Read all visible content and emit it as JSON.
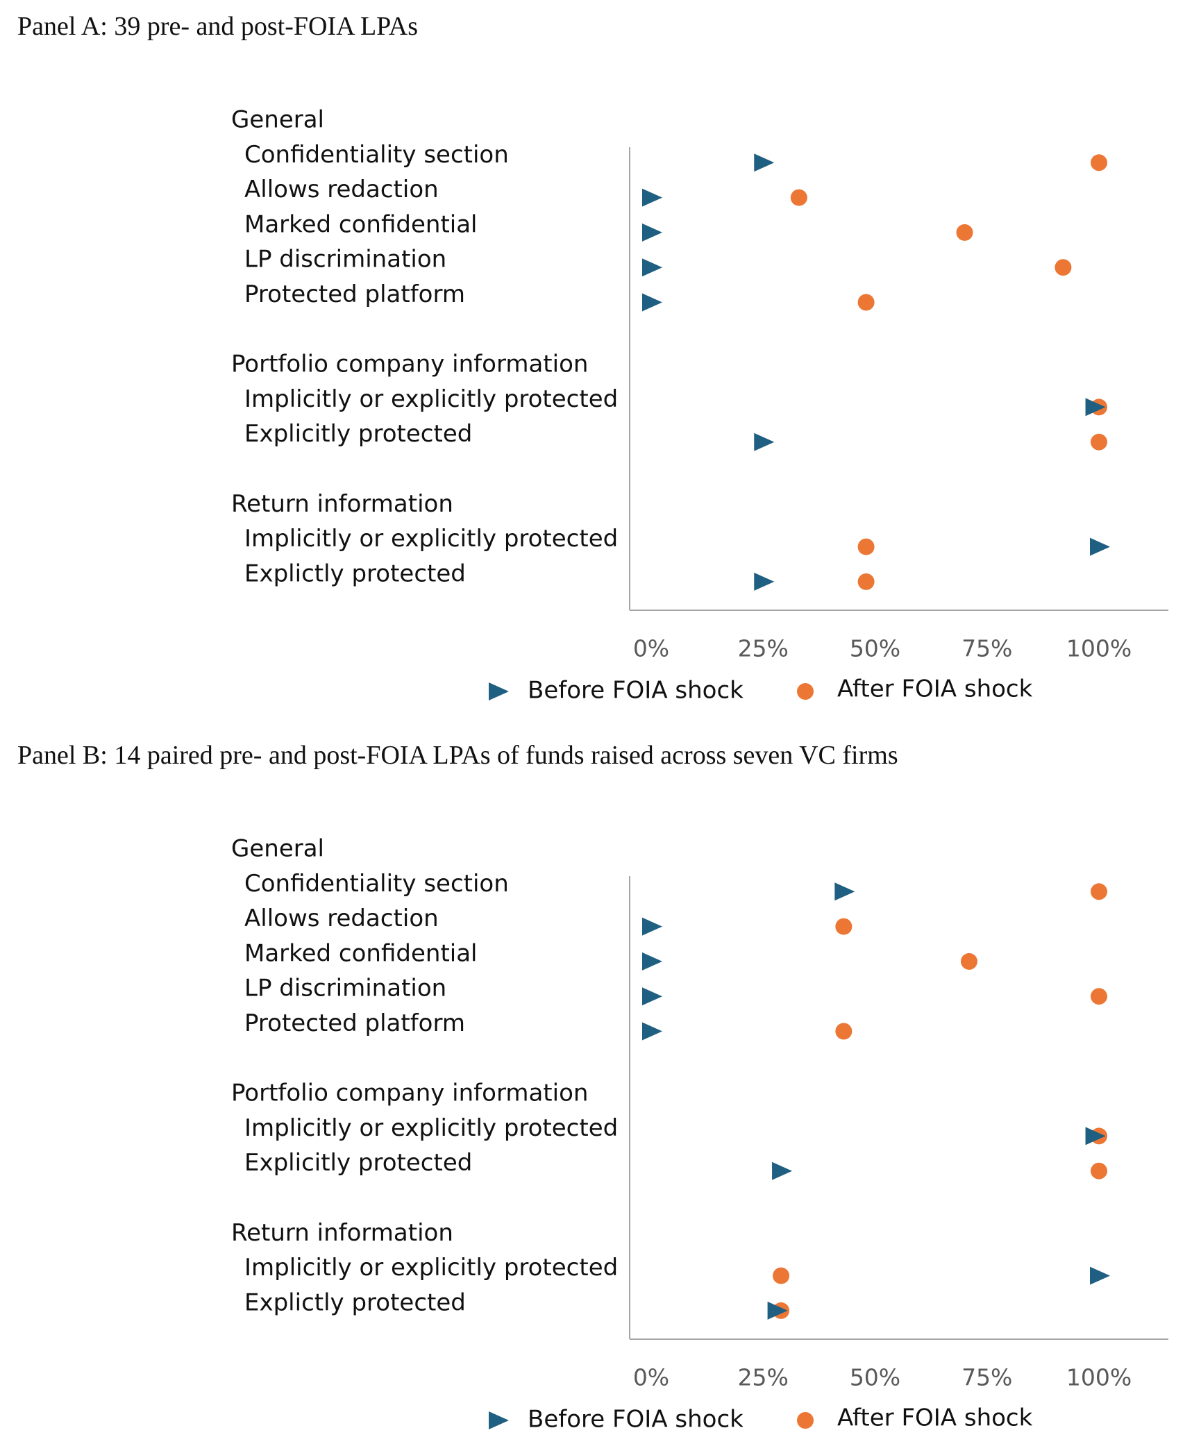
{
  "panel_a": {
    "title": "Panel A: 39 pre- and post-FOIA LPAs"
  },
  "panel_b": {
    "title": "Panel B: 14 paired pre- and post-FOIA LPAs of funds raised across seven VC firms"
  },
  "colors": {
    "before": "#1f5f82",
    "after": "#ec7634",
    "axis": "#a6a6a6"
  },
  "icons": {
    "before": "triangle-right-icon",
    "after": "circle-icon"
  },
  "chart_data": [
    {
      "type": "scatter",
      "title": "Panel A: 39 pre- and post-FOIA LPAs",
      "xlim": [
        0,
        1.2
      ],
      "x_ticks": [
        "0%",
        "25%",
        "50%",
        "75%",
        "100%"
      ],
      "x_tick_values": [
        0,
        0.25,
        0.5,
        0.75,
        1.0
      ],
      "grid": false,
      "legend_placement": "bottom",
      "rows": [
        {
          "kind": "group",
          "label": "General"
        },
        {
          "kind": "item",
          "label": "Confidentiality section",
          "before": 0.25,
          "after": 1.0
        },
        {
          "kind": "item",
          "label": "Allows redaction",
          "before": 0.0,
          "after": 0.33
        },
        {
          "kind": "item",
          "label": "Marked confidential",
          "before": 0.0,
          "after": 0.7
        },
        {
          "kind": "item",
          "label": "LP discrimination",
          "before": 0.0,
          "after": 0.92
        },
        {
          "kind": "item",
          "label": "Protected platform",
          "before": 0.0,
          "after": 0.48
        },
        {
          "kind": "group",
          "label": "Portfolio company information"
        },
        {
          "kind": "item",
          "label": "Implicitly or explicitly protected",
          "before": 0.99,
          "after": 1.0
        },
        {
          "kind": "item",
          "label": "Explicitly protected",
          "before": 0.25,
          "after": 1.0
        },
        {
          "kind": "group",
          "label": "Return information"
        },
        {
          "kind": "item",
          "label": "Implicitly or explicitly protected",
          "before": 1.0,
          "after": 0.48
        },
        {
          "kind": "item",
          "label": "Explictly protected",
          "before": 0.25,
          "after": 0.48
        }
      ],
      "series": [
        {
          "name": "Before FOIA shock",
          "key": "before"
        },
        {
          "name": "After FOIA shock",
          "key": "after"
        }
      ]
    },
    {
      "type": "scatter",
      "title": "Panel B: 14 paired pre- and post-FOIA LPAs of funds raised across seven VC firms",
      "xlim": [
        0,
        1.2
      ],
      "x_ticks": [
        "0%",
        "25%",
        "50%",
        "75%",
        "100%"
      ],
      "x_tick_values": [
        0,
        0.25,
        0.5,
        0.75,
        1.0
      ],
      "grid": false,
      "legend_placement": "bottom",
      "rows": [
        {
          "kind": "group",
          "label": "General"
        },
        {
          "kind": "item",
          "label": "Confidentiality section",
          "before": 0.43,
          "after": 1.0
        },
        {
          "kind": "item",
          "label": "Allows redaction",
          "before": 0.0,
          "after": 0.43
        },
        {
          "kind": "item",
          "label": "Marked confidential",
          "before": 0.0,
          "after": 0.71
        },
        {
          "kind": "item",
          "label": "LP discrimination",
          "before": 0.0,
          "after": 1.0
        },
        {
          "kind": "item",
          "label": "Protected platform",
          "before": 0.0,
          "after": 0.43
        },
        {
          "kind": "group",
          "label": "Portfolio company information"
        },
        {
          "kind": "item",
          "label": "Implicitly or explicitly protected",
          "before": 0.99,
          "after": 1.0
        },
        {
          "kind": "item",
          "label": "Explicitly protected",
          "before": 0.29,
          "after": 1.0
        },
        {
          "kind": "group",
          "label": "Return information"
        },
        {
          "kind": "item",
          "label": "Implicitly or explicitly protected",
          "before": 1.0,
          "after": 0.29
        },
        {
          "kind": "item",
          "label": "Explictly protected",
          "before": 0.28,
          "after": 0.29
        }
      ],
      "series": [
        {
          "name": "Before FOIA shock",
          "key": "before"
        },
        {
          "name": "After FOIA shock",
          "key": "after"
        }
      ]
    }
  ]
}
